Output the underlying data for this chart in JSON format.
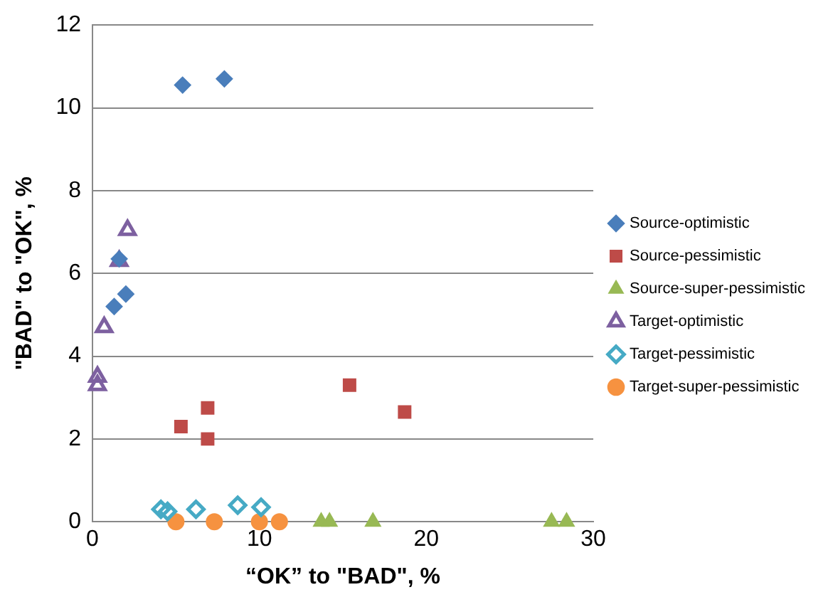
{
  "chart_data": {
    "type": "scatter",
    "xlabel": "“OK” to \"BAD\", %",
    "ylabel": "\"BAD\" to \"OK\", %",
    "xlim": [
      0,
      30
    ],
    "xticks": [
      0,
      10,
      20,
      30
    ],
    "ylim": [
      0,
      12
    ],
    "yticks": [
      0,
      2,
      4,
      6,
      8,
      10,
      12
    ],
    "grid": "y",
    "legend": "right",
    "series": [
      {
        "name": "Source-optimistic",
        "color": "#4a7ebb",
        "marker": "diamond",
        "x": [
          5.4,
          7.9,
          1.6,
          2.0,
          1.3
        ],
        "values": [
          10.55,
          10.7,
          6.35,
          5.5,
          5.2
        ]
      },
      {
        "name": "Source-pessimistic",
        "color": "#be4b48",
        "marker": "square",
        "x": [
          5.3,
          6.9,
          6.9,
          15.4,
          18.7
        ],
        "values": [
          2.3,
          2.75,
          2.0,
          3.3,
          2.65
        ]
      },
      {
        "name": "Source-super-pessimistic",
        "color": "#98b954",
        "marker": "triangle",
        "x": [
          13.7,
          14.2,
          16.8,
          27.5,
          28.4
        ],
        "values": [
          0,
          0,
          0,
          0,
          0
        ]
      },
      {
        "name": "Target-optimistic",
        "color": "#7d60a0",
        "marker": "triangle-open",
        "x": [
          2.1,
          1.6,
          0.7,
          0.3,
          0.3
        ],
        "values": [
          7.05,
          6.3,
          4.7,
          3.5,
          3.3
        ]
      },
      {
        "name": "Target-pessimistic",
        "color": "#46aac5",
        "marker": "diamond-open",
        "x": [
          4.1,
          4.5,
          6.2,
          8.7,
          10.1
        ],
        "values": [
          0.3,
          0.25,
          0.3,
          0.4,
          0.35
        ]
      },
      {
        "name": "Target-super-pessimistic",
        "color": "#f69240",
        "marker": "circle",
        "x": [
          5.0,
          7.3,
          10.0,
          11.2
        ],
        "values": [
          0,
          0,
          0,
          0
        ]
      }
    ]
  }
}
